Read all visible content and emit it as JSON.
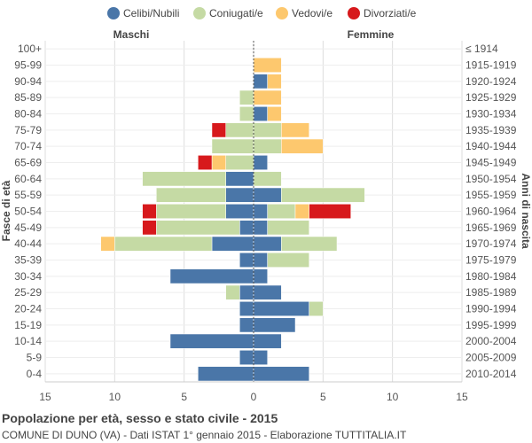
{
  "chart_data": {
    "type": "bar",
    "orientation": "horizontal-diverging",
    "title": "Popolazione per età, sesso e stato civile - 2015",
    "subtitle": "COMUNE DI DUNO (VA) - Dati ISTAT 1° gennaio 2015 - Elaborazione TUTTITALIA.IT",
    "left_label": "Maschi",
    "right_label": "Femmine",
    "ylabel_left": "Fasce di età",
    "ylabel_right": "Anni di nascita",
    "xlim": [
      -15,
      15
    ],
    "xticks": [
      -15,
      -10,
      -5,
      0,
      5,
      10,
      15
    ],
    "xtick_labels": [
      "15",
      "10",
      "5",
      "0",
      "5",
      "10",
      "15"
    ],
    "age_groups": [
      "100+",
      "95-99",
      "90-94",
      "85-89",
      "80-84",
      "75-79",
      "70-74",
      "65-69",
      "60-64",
      "55-59",
      "50-54",
      "45-49",
      "40-44",
      "35-39",
      "30-34",
      "25-29",
      "20-24",
      "15-19",
      "10-14",
      "5-9",
      "0-4"
    ],
    "birth_years": [
      "≤ 1914",
      "1915-1919",
      "1920-1924",
      "1925-1929",
      "1930-1934",
      "1935-1939",
      "1940-1944",
      "1945-1949",
      "1950-1954",
      "1955-1959",
      "1960-1964",
      "1965-1969",
      "1970-1974",
      "1975-1979",
      "1980-1984",
      "1985-1989",
      "1990-1994",
      "1995-1999",
      "2000-2004",
      "2005-2009",
      "2010-2014"
    ],
    "series": [
      {
        "name": "Celibi/Nubili",
        "color": "#4a76a8",
        "male": [
          0,
          0,
          0,
          0,
          0,
          0,
          0,
          0,
          2,
          2,
          2,
          1,
          3,
          1,
          6,
          1,
          1,
          1,
          6,
          1,
          4
        ],
        "female": [
          0,
          0,
          1,
          0,
          1,
          0,
          0,
          1,
          0,
          2,
          1,
          1,
          2,
          1,
          1,
          2,
          4,
          3,
          2,
          1,
          4
        ]
      },
      {
        "name": "Coniugati/e",
        "color": "#c5daa4",
        "male": [
          0,
          0,
          0,
          1,
          1,
          2,
          3,
          2,
          6,
          5,
          5,
          6,
          7,
          0,
          0,
          1,
          0,
          0,
          0,
          0,
          0
        ],
        "female": [
          0,
          0,
          0,
          0,
          0,
          2,
          2,
          0,
          2,
          6,
          2,
          3,
          4,
          3,
          0,
          0,
          1,
          0,
          0,
          0,
          0
        ]
      },
      {
        "name": "Vedovi/e",
        "color": "#fdc86e",
        "male": [
          0,
          0,
          0,
          0,
          0,
          0,
          0,
          1,
          0,
          0,
          0,
          0,
          1,
          0,
          0,
          0,
          0,
          0,
          0,
          0,
          0
        ],
        "female": [
          0,
          2,
          1,
          2,
          1,
          2,
          3,
          0,
          0,
          0,
          1,
          0,
          0,
          0,
          0,
          0,
          0,
          0,
          0,
          0,
          0
        ]
      },
      {
        "name": "Divorziati/e",
        "color": "#d7191c",
        "male": [
          0,
          0,
          0,
          0,
          0,
          1,
          0,
          1,
          0,
          0,
          1,
          1,
          0,
          0,
          0,
          0,
          0,
          0,
          0,
          0,
          0
        ],
        "female": [
          0,
          0,
          0,
          0,
          0,
          0,
          0,
          0,
          0,
          0,
          3,
          0,
          0,
          0,
          0,
          0,
          0,
          0,
          0,
          0,
          0
        ]
      }
    ]
  }
}
